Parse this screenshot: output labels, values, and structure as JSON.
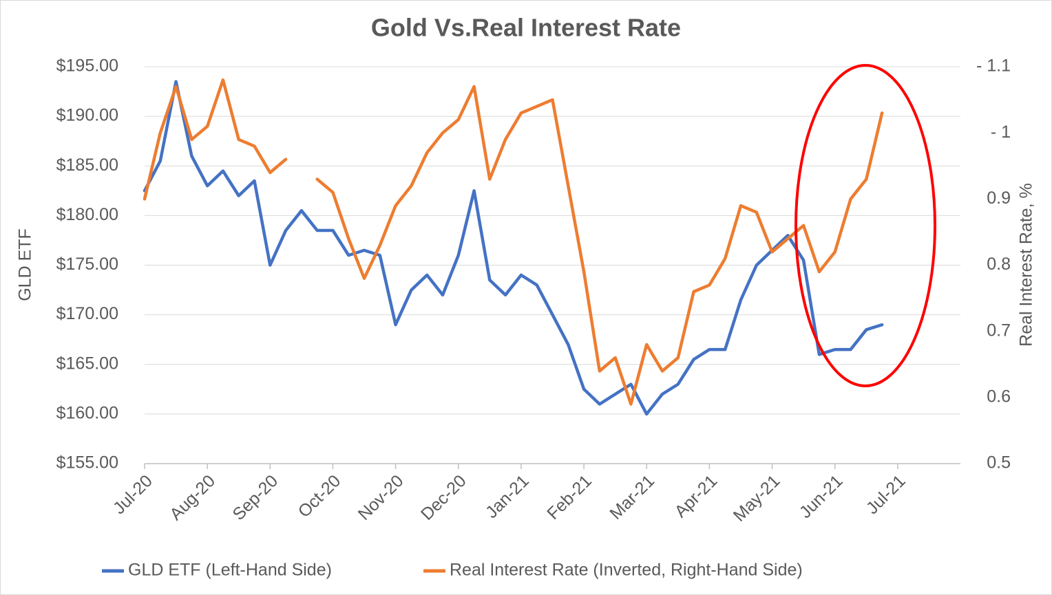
{
  "chart_data": {
    "type": "line",
    "title": "Gold Vs.Real Interest Rate",
    "ylabel": "GLD ETF",
    "y2label": "Real Interest Rate, %",
    "categories": [
      "Jul-20",
      null,
      null,
      null,
      "Aug-20",
      null,
      null,
      null,
      "Sep-20",
      null,
      null,
      null,
      "Oct-20",
      null,
      null,
      null,
      "Nov-20",
      null,
      null,
      null,
      "Dec-20",
      null,
      null,
      null,
      "Jan-21",
      null,
      null,
      null,
      "Feb-21",
      null,
      null,
      null,
      "Mar-21",
      null,
      null,
      null,
      "Apr-21",
      null,
      null,
      null,
      "May-21",
      null,
      null,
      null,
      "Jun-21",
      null,
      null,
      null,
      "Jul-21",
      null,
      null,
      null,
      null
    ],
    "series": [
      {
        "name": "GLD ETF (Left-Hand Side)",
        "color": "#4472c4",
        "axis": "y",
        "values": [
          182.5,
          185.5,
          193.5,
          186,
          183,
          184.5,
          182,
          183.5,
          175,
          178.5,
          180.5,
          178.5,
          178.5,
          176,
          176.5,
          176,
          169,
          172.5,
          174,
          172,
          176,
          182.5,
          173.5,
          172,
          174,
          173,
          170,
          167,
          162.5,
          161,
          162,
          163,
          160,
          162,
          163,
          165.5,
          166.5,
          166.5,
          171.5,
          175,
          176.5,
          178,
          175.5,
          166,
          166.5,
          166.5,
          168.5,
          169,
          null,
          null,
          null,
          null,
          null
        ]
      },
      {
        "name": "Real Interest Rate (Inverted, Right-Hand Side)",
        "color": "#ed7d31",
        "axis": "y2",
        "values": [
          0.9,
          1.0,
          1.07,
          0.99,
          1.01,
          1.08,
          0.99,
          0.98,
          0.94,
          0.96,
          null,
          0.93,
          0.91,
          0.84,
          0.78,
          0.83,
          0.89,
          0.92,
          0.97,
          1.0,
          1.02,
          1.07,
          0.93,
          0.99,
          1.03,
          1.04,
          1.05,
          0.92,
          0.79,
          0.64,
          0.66,
          0.59,
          0.68,
          0.64,
          0.66,
          0.76,
          0.77,
          0.81,
          0.89,
          0.88,
          0.82,
          0.84,
          0.86,
          0.79,
          0.82,
          0.9,
          0.93,
          1.03,
          null,
          null,
          null,
          null,
          null
        ]
      }
    ],
    "ylim": [
      155,
      195
    ],
    "yticks": [
      {
        "value": 155,
        "label": "$155.00"
      },
      {
        "value": 160,
        "label": "$160.00"
      },
      {
        "value": 165,
        "label": "$165.00"
      },
      {
        "value": 170,
        "label": "$170.00"
      },
      {
        "value": 175,
        "label": "$175.00"
      },
      {
        "value": 180,
        "label": "$180.00"
      },
      {
        "value": 185,
        "label": "$185.00"
      },
      {
        "value": 190,
        "label": "$190.00"
      },
      {
        "value": 195,
        "label": "$195.00"
      }
    ],
    "y2lim": [
      0.5,
      1.1
    ],
    "y2ticks": [
      0.5,
      0.6,
      0.7,
      0.8,
      0.9,
      {
        "value": 1,
        "label": "- 1"
      },
      {
        "value": 1.1,
        "label": "- 1.1"
      }
    ],
    "grid": true,
    "legend": "bottom"
  }
}
